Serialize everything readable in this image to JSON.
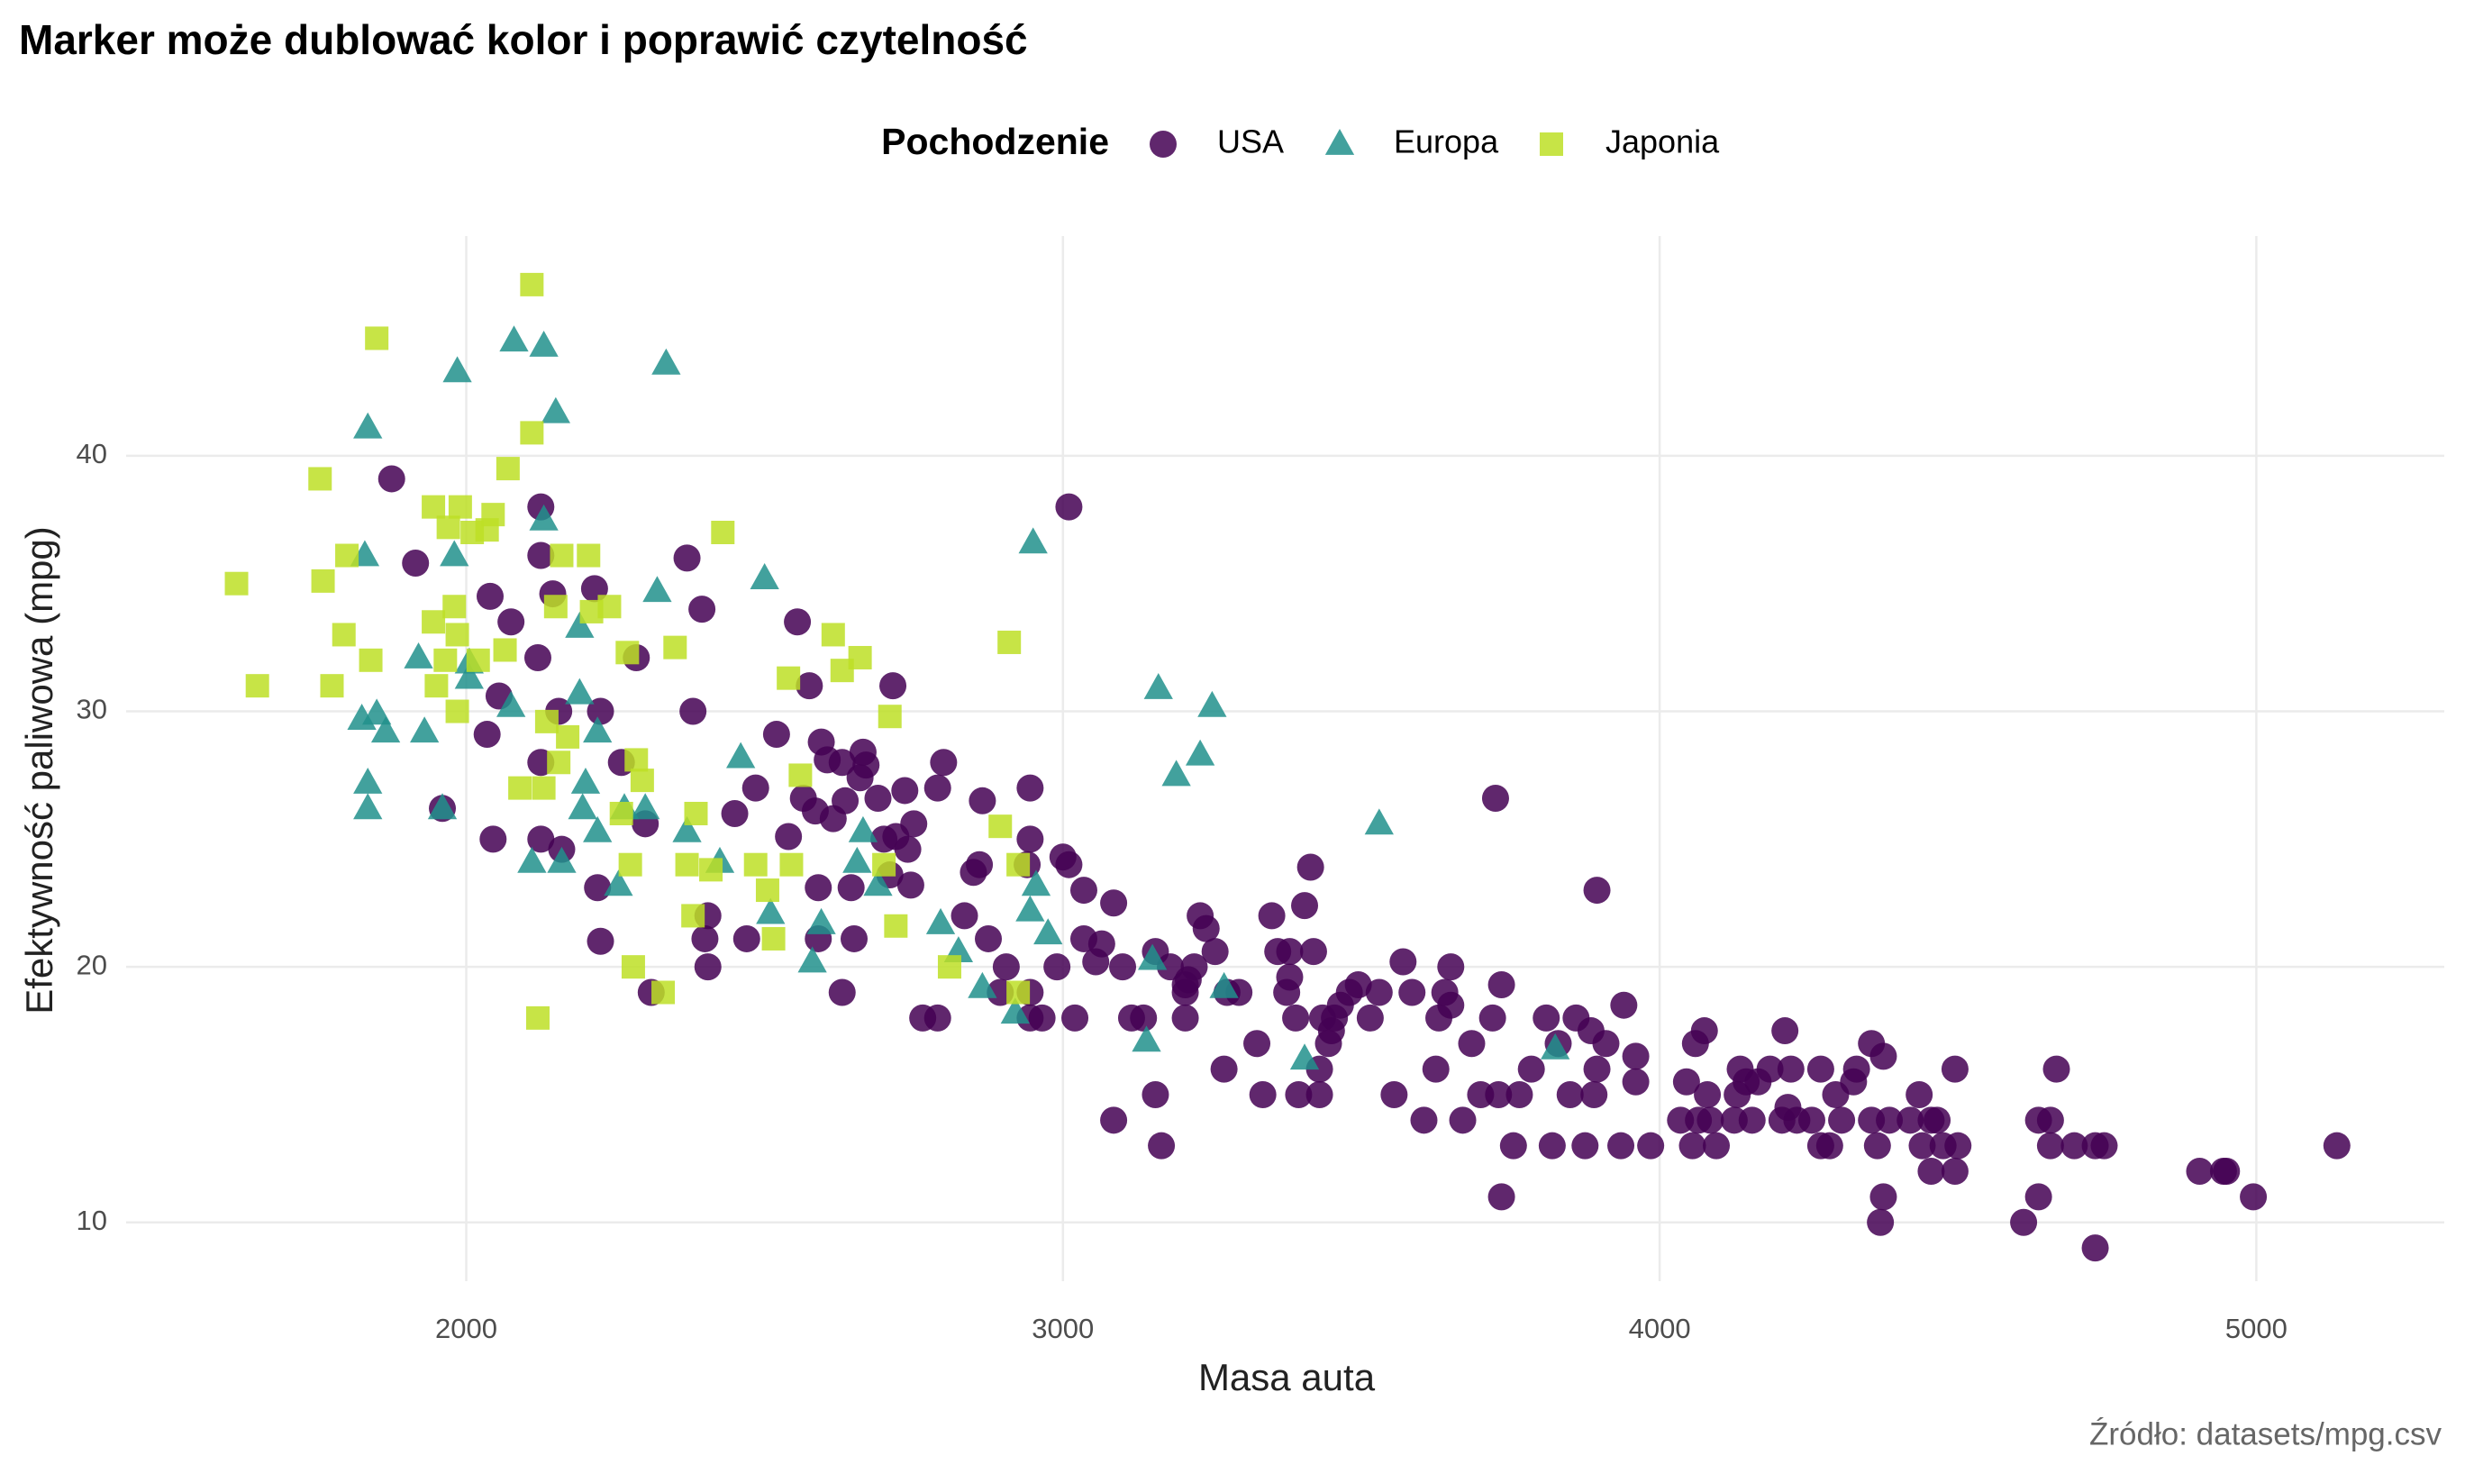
{
  "chart_data": {
    "type": "scatter",
    "title": "Marker może dublować kolor i poprawić czytelność",
    "x_label": "Masa auta",
    "y_label": "Efektywność paliwowa (mpg)",
    "caption": "Źródło: datasets/mpg.csv",
    "legend_title": "Pochodzenie",
    "legend_position": "top",
    "grid": true,
    "xlim": [
      1430,
      5315
    ],
    "ylim": [
      7.7,
      48.6
    ],
    "xticks": [
      2000,
      3000,
      4000,
      5000
    ],
    "yticks": [
      10,
      20,
      30,
      40
    ],
    "series": [
      {
        "name": "USA",
        "color": "#440154",
        "marker": "circle",
        "x": [
          1875,
          1915,
          1960,
          2040,
          2035,
          2045,
          2055,
          2075,
          2125,
          2125,
          2120,
          2125,
          2125,
          2145,
          2155,
          2160,
          2215,
          2220,
          2225,
          2225,
          2260,
          2285,
          2300,
          2310,
          2370,
          2380,
          2395,
          2405,
          2400,
          2405,
          2450,
          2470,
          2485,
          2520,
          2540,
          2555,
          2565,
          2575,
          2585,
          2590,
          2590,
          2595,
          2605,
          2615,
          2630,
          2630,
          2635,
          2645,
          2650,
          2660,
          2665,
          2670,
          2690,
          2700,
          2715,
          2710,
          2720,
          2735,
          2740,
          2745,
          2750,
          2765,
          2790,
          2790,
          2800,
          2835,
          2850,
          2860,
          2865,
          2875,
          2895,
          2905,
          2945,
          2945,
          2945,
          2945,
          2940,
          2965,
          2990,
          3000,
          3010,
          3010,
          3020,
          3035,
          3035,
          3055,
          3065,
          3085,
          3085,
          3100,
          3115,
          3135,
          3155,
          3155,
          3165,
          3180,
          3205,
          3205,
          3205,
          3210,
          3220,
          3230,
          3240,
          3255,
          3270,
          3275,
          3295,
          3325,
          3335,
          3350,
          3360,
          3375,
          3380,
          3380,
          3390,
          3395,
          3405,
          3415,
          3420,
          3430,
          3430,
          3435,
          3445,
          3450,
          3455,
          3465,
          3480,
          3495,
          3515,
          3530,
          3555,
          3570,
          3585,
          3605,
          3630,
          3625,
          3640,
          3650,
          3650,
          3670,
          3685,
          3700,
          3720,
          3730,
          3735,
          3725,
          3735,
          3755,
          3765,
          3785,
          3810,
          3820,
          3830,
          3850,
          3860,
          3875,
          3885,
          3895,
          3890,
          3895,
          3910,
          3935,
          3940,
          3960,
          3960,
          3985,
          4035,
          4045,
          4055,
          4060,
          4065,
          4075,
          4080,
          4085,
          4095,
          4125,
          4130,
          4135,
          4145,
          4155,
          4165,
          4185,
          4205,
          4210,
          4215,
          4220,
          4230,
          4255,
          4270,
          4270,
          4285,
          4295,
          4305,
          4325,
          4330,
          4355,
          4355,
          4365,
          4375,
          4375,
          4370,
          4385,
          4420,
          4435,
          4440,
          4455,
          4455,
          4465,
          4475,
          4495,
          4495,
          4500,
          4610,
          4635,
          4635,
          4655,
          4655,
          4665,
          4695,
          4730,
          4745,
          4730,
          4905,
          4945,
          4950,
          4995,
          5135
        ],
        "y": [
          39.1,
          35.8,
          26.2,
          34.5,
          29.1,
          25,
          30.6,
          33.5,
          38,
          36.1,
          32.1,
          28,
          25,
          34.6,
          30,
          24.6,
          34.8,
          23.1,
          21,
          30,
          28,
          32.1,
          25.6,
          19,
          36,
          30,
          34,
          22,
          21.1,
          20,
          26,
          21.1,
          27,
          29.1,
          25.1,
          33.5,
          26.6,
          31,
          26.1,
          23.1,
          21.1,
          28.8,
          28.1,
          25.8,
          28,
          19,
          26.5,
          23.1,
          21.1,
          27.4,
          28.4,
          27.9,
          26.6,
          25,
          31,
          23.6,
          25.1,
          26.9,
          24.6,
          23.2,
          25.6,
          18,
          18,
          27,
          28,
          22,
          23.7,
          24,
          26.5,
          21.1,
          19,
          20,
          19,
          18,
          27,
          25,
          24,
          18,
          20,
          24.3,
          38,
          24,
          18,
          23,
          21.1,
          20.2,
          20.9,
          22.5,
          14,
          20,
          18,
          18,
          20.6,
          15,
          13,
          20,
          19,
          18,
          19.3,
          19.5,
          20,
          22,
          21.5,
          20.6,
          16,
          19,
          19,
          17,
          15,
          22,
          20.6,
          19,
          20.6,
          19.6,
          18,
          15,
          22.4,
          23.9,
          20.6,
          16,
          15,
          18,
          17,
          17.5,
          18,
          18.5,
          19,
          19.3,
          18,
          19,
          15,
          20.2,
          19,
          14,
          18,
          16,
          19,
          18.5,
          20,
          14,
          17,
          15,
          18,
          15,
          19.3,
          26.6,
          11,
          13,
          15,
          16,
          18,
          13,
          17,
          15,
          18,
          13,
          17.5,
          16,
          15,
          23,
          17,
          13,
          18.5,
          16.5,
          15.5,
          13,
          14,
          15.5,
          13,
          17,
          14,
          17.5,
          15,
          14,
          13,
          14,
          15,
          16,
          15.5,
          14,
          15.5,
          16,
          14,
          17.5,
          14.5,
          16,
          14,
          14,
          13,
          16,
          13,
          15,
          14,
          15.5,
          16,
          14,
          17,
          13,
          16.5,
          11,
          10,
          14,
          14,
          15,
          13,
          14,
          12,
          14,
          13,
          16,
          12,
          13,
          10,
          14,
          11,
          13,
          14,
          16,
          13,
          13,
          13,
          9,
          12,
          12,
          12,
          11,
          13
        ]
      },
      {
        "name": "Europa",
        "color": "#21918c",
        "marker": "triangle",
        "x": [
          1835,
          1830,
          1825,
          1850,
          1865,
          1835,
          1835,
          1920,
          1930,
          1960,
          1980,
          1985,
          2005,
          2005,
          2080,
          2130,
          2150,
          2130,
          2075,
          2110,
          2160,
          2190,
          2190,
          2195,
          2220,
          2200,
          2220,
          2255,
          2265,
          2300,
          2320,
          2335,
          2370,
          2425,
          2460,
          2500,
          2510,
          2580,
          2595,
          2665,
          2655,
          2690,
          2795,
          2825,
          2865,
          2920,
          2945,
          2950,
          2955,
          2975,
          3150,
          3140,
          3160,
          3190,
          3230,
          3250,
          3270,
          3405,
          3530,
          3825
        ],
        "y": [
          41.1,
          36.1,
          29.7,
          29.9,
          29.2,
          27.2,
          26.2,
          32.1,
          29.2,
          26.2,
          36.1,
          43.3,
          31.9,
          31.3,
          44.5,
          44.3,
          41.7,
          37.5,
          30.2,
          24.1,
          24.1,
          30.7,
          33.3,
          26.2,
          29.2,
          27.2,
          25.3,
          23.2,
          26.2,
          26.2,
          34.7,
          43.6,
          25.3,
          24.1,
          28.2,
          35.2,
          22.1,
          20.2,
          21.7,
          25.3,
          24.1,
          23.2,
          21.7,
          20.6,
          19.2,
          18.2,
          22.2,
          36.6,
          23.2,
          21.3,
          20.3,
          17.1,
          30.9,
          27.5,
          28.3,
          30.2,
          19.2,
          16.4,
          25.6,
          16.8
        ]
      },
      {
        "name": "Japonia",
        "color": "#bddf26",
        "marker": "square",
        "x": [
          1615,
          1650,
          1755,
          1760,
          1775,
          1795,
          1800,
          1840,
          1850,
          1945,
          1945,
          1950,
          1965,
          1970,
          1980,
          1985,
          1985,
          1990,
          2010,
          2020,
          2035,
          2045,
          2065,
          2070,
          2090,
          2110,
          2110,
          2120,
          2130,
          2135,
          2150,
          2155,
          2170,
          2160,
          2205,
          2210,
          2240,
          2260,
          2270,
          2275,
          2280,
          2285,
          2295,
          2330,
          2350,
          2370,
          2380,
          2385,
          2410,
          2430,
          2485,
          2505,
          2515,
          2545,
          2540,
          2560,
          2615,
          2630,
          2660,
          2700,
          2710,
          2720,
          2810,
          2895,
          2910,
          2925,
          2925
        ],
        "y": [
          35,
          31,
          39.1,
          35.1,
          31,
          33,
          36.1,
          32,
          44.6,
          38,
          33.5,
          31,
          32,
          37.2,
          34.1,
          30,
          33,
          38,
          37,
          32,
          37.1,
          37.7,
          32.4,
          39.5,
          27,
          46.7,
          40.9,
          18,
          27,
          29.6,
          34.1,
          28,
          29,
          36.1,
          36.1,
          33.9,
          34.1,
          26,
          32.3,
          24,
          20,
          28.1,
          27.3,
          19,
          32.5,
          24,
          22,
          26,
          23.8,
          37,
          24,
          23,
          21.1,
          24,
          31.3,
          27.5,
          33,
          31.6,
          32.1,
          24,
          29.8,
          21.6,
          20,
          25.5,
          32.7,
          24,
          19
        ]
      }
    ]
  }
}
